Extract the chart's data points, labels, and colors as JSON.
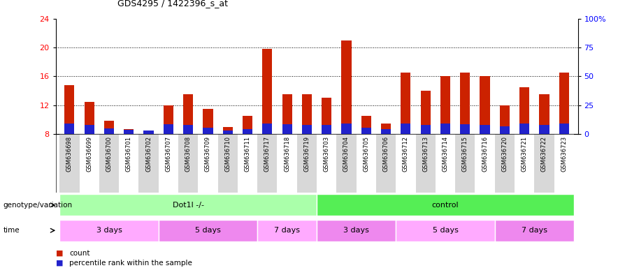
{
  "title": "GDS4295 / 1422396_s_at",
  "samples": [
    "GSM636698",
    "GSM636699",
    "GSM636700",
    "GSM636701",
    "GSM636702",
    "GSM636707",
    "GSM636708",
    "GSM636709",
    "GSM636710",
    "GSM636711",
    "GSM636717",
    "GSM636718",
    "GSM636719",
    "GSM636703",
    "GSM636704",
    "GSM636705",
    "GSM636706",
    "GSM636712",
    "GSM636713",
    "GSM636714",
    "GSM636715",
    "GSM636716",
    "GSM636720",
    "GSM636721",
    "GSM636722",
    "GSM636723"
  ],
  "count_values": [
    14.8,
    12.5,
    9.8,
    8.7,
    8.5,
    12.0,
    13.5,
    11.5,
    9.0,
    10.5,
    19.8,
    13.5,
    13.5,
    13.0,
    21.0,
    10.5,
    9.5,
    16.5,
    14.0,
    16.0,
    16.5,
    16.0,
    12.0,
    14.5,
    13.5,
    16.5
  ],
  "percentile_values": [
    9.5,
    9.3,
    8.8,
    8.6,
    8.5,
    9.4,
    9.3,
    8.9,
    8.5,
    8.7,
    9.5,
    9.4,
    9.3,
    9.3,
    9.5,
    8.9,
    8.7,
    9.5,
    9.3,
    9.5,
    9.4,
    9.3,
    9.1,
    9.5,
    9.3,
    9.5
  ],
  "bar_bottom": 8.0,
  "ylim_left": [
    8,
    24
  ],
  "ylim_right": [
    0,
    100
  ],
  "yticks_left": [
    8,
    12,
    16,
    20,
    24
  ],
  "yticks_right": [
    0,
    25,
    50,
    75,
    100
  ],
  "bar_color_red": "#cc2200",
  "bar_color_blue": "#2222cc",
  "genotype_groups": [
    {
      "label": "Dot1l -/-",
      "start": 0,
      "end": 12,
      "color": "#aaffaa"
    },
    {
      "label": "control",
      "start": 13,
      "end": 25,
      "color": "#55ee55"
    }
  ],
  "time_groups": [
    {
      "label": "3 days",
      "start": 0,
      "end": 4,
      "color": "#ffaaff"
    },
    {
      "label": "5 days",
      "start": 5,
      "end": 9,
      "color": "#ee88ee"
    },
    {
      "label": "7 days",
      "start": 10,
      "end": 12,
      "color": "#ffaaff"
    },
    {
      "label": "3 days",
      "start": 13,
      "end": 16,
      "color": "#ee88ee"
    },
    {
      "label": "5 days",
      "start": 17,
      "end": 21,
      "color": "#ffaaff"
    },
    {
      "label": "7 days",
      "start": 22,
      "end": 25,
      "color": "#ee88ee"
    }
  ],
  "legend_count_label": "count",
  "legend_percentile_label": "percentile rank within the sample",
  "xlabel_genotype": "genotype/variation",
  "xlabel_time": "time",
  "bar_width": 0.5,
  "background_color": "#ffffff",
  "plot_bg_color": "#ffffff",
  "tick_bg_colors": [
    "#d8d8d8",
    "#ffffff"
  ]
}
